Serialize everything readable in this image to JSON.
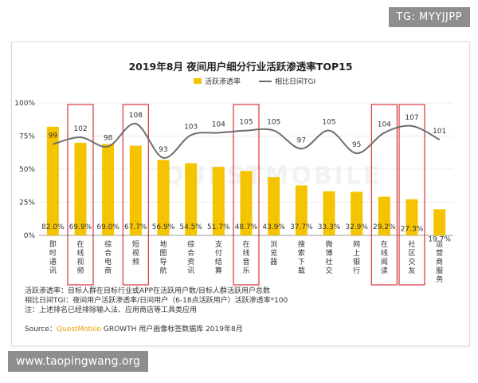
{
  "watermark_tg": "TG: MYYJJPP",
  "watermark_site": "www.taopingwang.org",
  "chart_data": {
    "type": "bar",
    "title": "2019年8月 夜间用户细分行业活跃渗透率TOP15",
    "categories": [
      "即时通讯",
      "在线视频",
      "综合电商",
      "短视频",
      "地图导航",
      "综合资讯",
      "支付结算",
      "在线音乐",
      "浏览器",
      "搜索下载",
      "微博社交",
      "网上银行",
      "在线阅读",
      "社区交友",
      "运营商服务"
    ],
    "series": [
      {
        "name": "活跃渗透率",
        "type": "bar",
        "values": [
          82.0,
          69.9,
          69.0,
          67.7,
          56.9,
          54.5,
          51.7,
          48.7,
          43.9,
          37.7,
          33.3,
          32.9,
          29.2,
          27.3,
          19.7
        ],
        "labels": [
          "82.0%",
          "69.9%",
          "69.0%",
          "67.7%",
          "56.9%",
          "54.5%",
          "51.7%",
          "48.7%",
          "43.9%",
          "37.7%",
          "33.3%",
          "32.9%",
          "29.2%",
          "27.3%",
          "19.7%"
        ]
      },
      {
        "name": "相比日间TGI",
        "type": "line",
        "values": [
          99,
          102,
          98,
          108,
          93,
          103,
          104,
          105,
          105,
          97,
          105,
          95,
          104,
          107,
          101
        ]
      }
    ],
    "yticks": [
      "0%",
      "25%",
      "50%",
      "75%",
      "100%"
    ],
    "ylim": [
      0,
      100
    ],
    "tgi_range": [
      80,
      115
    ],
    "highlighted": [
      "在线视频",
      "短视频",
      "在线音乐",
      "在线阅读",
      "社区交友"
    ],
    "colors": {
      "bar": "#f5c400",
      "line": "#6e6e6e",
      "highlight": "#d9343a"
    }
  },
  "notes": [
    "活跃渗透率：目标人群在目标行业或APP在活跃用户数/目标人群活跃用户总数",
    "相比日间TGI：夜间用户活跃渗透率/日间用户（6-18点活跃用户）活跃渗透率*100",
    "注：上述排名已经排除输入法、应用商店等工具类应用"
  ],
  "source": {
    "prefix": "Source：",
    "brand": "QuestMobile",
    "rest": " GROWTH 用户画像标签数据库 2019年8月"
  },
  "bg_watermark": "QUESTMOBILE"
}
